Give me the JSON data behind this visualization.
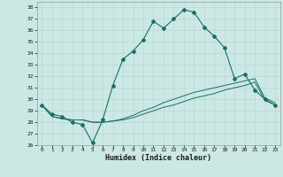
{
  "title": "",
  "xlabel": "Humidex (Indice chaleur)",
  "ylabel": "",
  "bg_color": "#cce8e5",
  "grid_color": "#b8d8d5",
  "line_color": "#1a6e66",
  "xlim": [
    -0.5,
    23.5
  ],
  "ylim": [
    26,
    38.5
  ],
  "yticks": [
    26,
    27,
    28,
    29,
    30,
    31,
    32,
    33,
    34,
    35,
    36,
    37,
    38
  ],
  "xticks": [
    0,
    1,
    2,
    3,
    4,
    5,
    6,
    7,
    8,
    9,
    10,
    11,
    12,
    13,
    14,
    15,
    16,
    17,
    18,
    19,
    20,
    21,
    22,
    23
  ],
  "main_y": [
    29.5,
    28.7,
    28.5,
    28.0,
    27.8,
    26.2,
    28.2,
    31.2,
    33.5,
    34.2,
    35.2,
    36.8,
    36.2,
    37.0,
    37.8,
    37.6,
    36.3,
    35.5,
    34.5,
    31.8,
    32.2,
    30.8,
    30.0,
    29.5
  ],
  "line2_y": [
    29.5,
    28.5,
    28.3,
    28.2,
    28.2,
    28.0,
    28.0,
    28.1,
    28.2,
    28.4,
    28.7,
    29.0,
    29.3,
    29.5,
    29.8,
    30.1,
    30.3,
    30.5,
    30.8,
    31.0,
    31.2,
    31.5,
    29.9,
    29.5
  ],
  "line3_y": [
    29.5,
    28.5,
    28.3,
    28.2,
    28.2,
    28.0,
    28.0,
    28.1,
    28.3,
    28.6,
    29.0,
    29.3,
    29.7,
    30.0,
    30.3,
    30.6,
    30.8,
    31.0,
    31.2,
    31.4,
    31.6,
    31.8,
    30.1,
    29.7
  ]
}
